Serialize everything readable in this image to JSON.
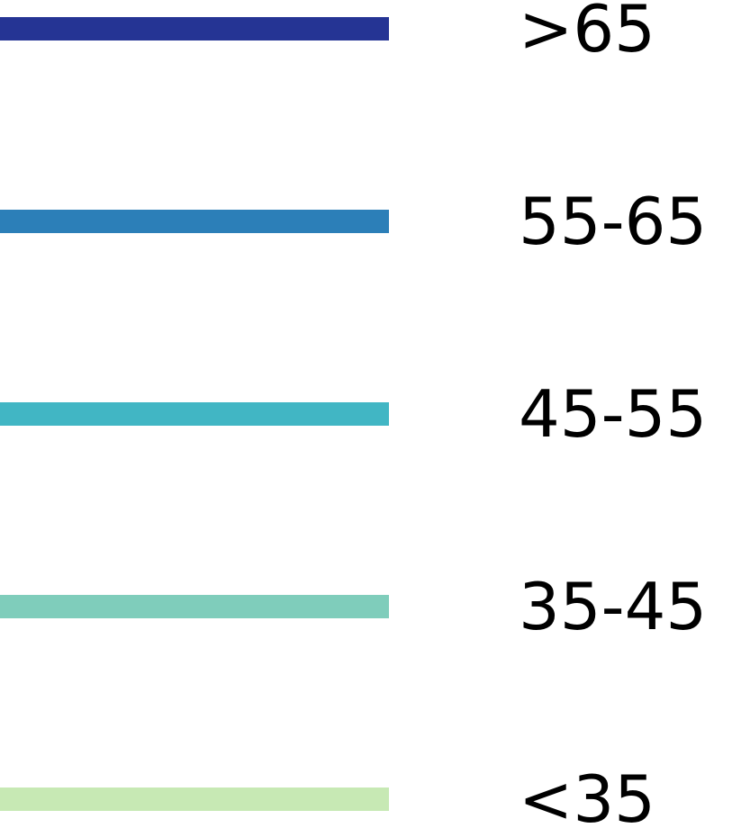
{
  "chart_data": {
    "type": "legend",
    "legend": {
      "entries": [
        {
          "label": ">65",
          "color": "#253494"
        },
        {
          "label": "55-65",
          "color": "#2c7fb8"
        },
        {
          "label": "45-55",
          "color": "#41b6c4"
        },
        {
          "label": "35-45",
          "color": "#7fcdbb"
        },
        {
          "label": "<35",
          "color": "#c7e9b4"
        }
      ]
    }
  }
}
